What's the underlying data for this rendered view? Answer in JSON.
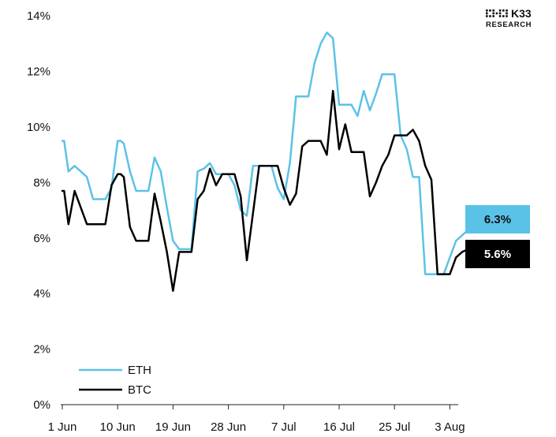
{
  "brand": {
    "line1": "K33",
    "line2": "RESEARCH",
    "icon": "dot-matrix-logo-icon"
  },
  "chart_data": {
    "type": "line",
    "title": "",
    "xlabel": "",
    "ylabel": "",
    "x_ticks": [
      "1 Jun",
      "10 Jun",
      "19 Jun",
      "28 Jun",
      "7 Jul",
      "16 Jul",
      "25 Jul",
      "3 Aug"
    ],
    "x_tick_days": [
      0,
      9,
      18,
      27,
      36,
      45,
      54,
      63
    ],
    "y_ticks": [
      "0%",
      "2%",
      "4%",
      "6%",
      "8%",
      "10%",
      "12%",
      "14%"
    ],
    "ylim": [
      0,
      14
    ],
    "grid": false,
    "legend_position": "bottom-left",
    "series": [
      {
        "name": "ETH",
        "color": "#5bc2e7",
        "last_label": "6.3%",
        "x": [
          0,
          0.3,
          1,
          2,
          3,
          4,
          5,
          6,
          7,
          8,
          9,
          9.5,
          10,
          11,
          12,
          13,
          14,
          15,
          16,
          17,
          18,
          19,
          20,
          21,
          22,
          23,
          24,
          25,
          26,
          27,
          28,
          29,
          30,
          31,
          32,
          33,
          34,
          35,
          36,
          37,
          38,
          39,
          40,
          41,
          42,
          43,
          44,
          45,
          46,
          47,
          48,
          49,
          50,
          51,
          52,
          53,
          54,
          55,
          56,
          57,
          58,
          59,
          60,
          61,
          62,
          63,
          64,
          65,
          66
        ],
        "values": [
          9.5,
          9.5,
          8.4,
          8.6,
          8.4,
          8.2,
          7.4,
          7.4,
          7.4,
          7.8,
          9.5,
          9.5,
          9.4,
          8.4,
          7.7,
          7.7,
          7.7,
          8.9,
          8.4,
          7.1,
          5.9,
          5.6,
          5.6,
          5.6,
          8.4,
          8.5,
          8.7,
          8.3,
          8.3,
          8.3,
          7.9,
          7.0,
          6.8,
          8.6,
          8.6,
          8.6,
          8.6,
          7.8,
          7.4,
          8.7,
          11.1,
          11.1,
          11.1,
          12.3,
          13.0,
          13.4,
          13.2,
          10.8,
          10.8,
          10.8,
          10.4,
          11.3,
          10.6,
          11.2,
          11.9,
          11.9,
          11.9,
          9.7,
          9.2,
          8.2,
          8.2,
          4.7,
          4.7,
          4.7,
          4.7,
          5.3,
          5.9,
          6.1,
          6.3
        ]
      },
      {
        "name": "BTC",
        "color": "#000000",
        "last_label": "5.6%",
        "x": [
          0,
          0.3,
          1,
          2,
          3,
          4,
          5,
          6,
          7,
          8,
          9,
          9.5,
          10,
          11,
          12,
          13,
          14,
          15,
          16,
          17,
          18,
          19,
          20,
          21,
          22,
          23,
          24,
          25,
          26,
          27,
          28,
          29,
          30,
          31,
          32,
          33,
          34,
          35,
          36,
          37,
          38,
          39,
          40,
          41,
          42,
          43,
          44,
          45,
          46,
          47,
          48,
          49,
          50,
          51,
          52,
          53,
          54,
          55,
          56,
          57,
          58,
          59,
          60,
          61,
          62,
          63,
          64,
          65,
          66
        ],
        "values": [
          7.7,
          7.7,
          6.5,
          7.7,
          7.1,
          6.5,
          6.5,
          6.5,
          6.5,
          7.9,
          8.3,
          8.3,
          8.2,
          6.4,
          5.9,
          5.9,
          5.9,
          7.6,
          6.6,
          5.5,
          4.1,
          5.5,
          5.5,
          5.5,
          7.4,
          7.7,
          8.5,
          7.9,
          8.3,
          8.3,
          8.3,
          7.5,
          5.2,
          6.9,
          8.6,
          8.6,
          8.6,
          8.6,
          7.8,
          7.2,
          7.6,
          9.3,
          9.5,
          9.5,
          9.5,
          9.0,
          11.3,
          9.2,
          10.1,
          9.1,
          9.1,
          9.1,
          7.5,
          8.0,
          8.6,
          9.0,
          9.7,
          9.7,
          9.7,
          9.9,
          9.5,
          8.6,
          8.1,
          4.7,
          4.7,
          4.7,
          5.3,
          5.5,
          5.6
        ]
      }
    ]
  }
}
